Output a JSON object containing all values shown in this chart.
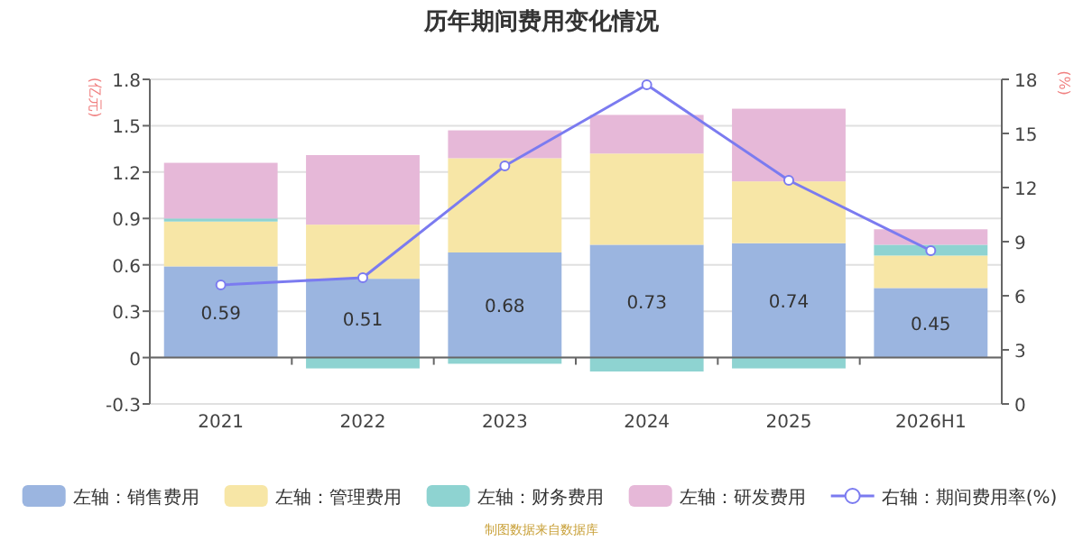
{
  "chart_data": {
    "type": "bar",
    "title": "历年期间费用变化情况",
    "ylabel": "(亿元)",
    "y2label": "(%)",
    "categories": [
      "2021",
      "2022",
      "2023",
      "2024",
      "2025",
      "2026H1"
    ],
    "stacked": true,
    "ylim": [
      -0.3,
      1.8
    ],
    "yticks": [
      -0.3,
      0,
      0.3,
      0.6,
      0.9,
      1.2,
      1.5,
      1.8
    ],
    "y2lim": [
      0,
      18
    ],
    "y2ticks": [
      0,
      3,
      6,
      9,
      12,
      15,
      18
    ],
    "grid": "y",
    "legend": "bottom",
    "annotations": [
      "制图数据来自数据库"
    ],
    "series": [
      {
        "name": "左轴：销售费用",
        "color": "#9bb5e0",
        "values": [
          0.59,
          0.51,
          0.68,
          0.73,
          0.74,
          0.45
        ],
        "value_labels": [
          "0.59",
          "0.51",
          "0.68",
          "0.73",
          "0.74",
          "0.45"
        ]
      },
      {
        "name": "左轴：管理费用",
        "color": "#f7e6a6",
        "values": [
          0.29,
          0.35,
          0.61,
          0.59,
          0.4,
          0.21
        ]
      },
      {
        "name": "左轴：财务费用",
        "color": "#8ed3d1",
        "values": [
          0.02,
          -0.07,
          -0.04,
          -0.09,
          -0.07,
          0.07
        ]
      },
      {
        "name": "左轴：研发费用",
        "color": "#e6b8d8",
        "values": [
          0.36,
          0.45,
          0.18,
          0.25,
          0.47,
          0.1
        ]
      },
      {
        "name": "右轴：期间费用率(%)",
        "type": "line",
        "axis": "y2",
        "color": "#7b7bf0",
        "marker": "circle",
        "values": [
          6.6,
          7.0,
          13.2,
          17.7,
          12.4,
          8.5
        ]
      }
    ]
  }
}
